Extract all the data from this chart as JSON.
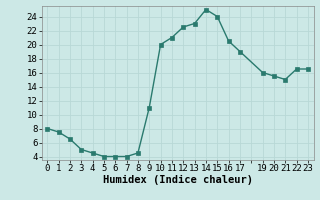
{
  "x": [
    0,
    1,
    2,
    3,
    4,
    5,
    6,
    7,
    8,
    9,
    10,
    11,
    12,
    13,
    14,
    15,
    16,
    17,
    19,
    20,
    21,
    22,
    23
  ],
  "y": [
    8,
    7.5,
    6.5,
    5,
    4.5,
    4,
    4,
    4,
    4.5,
    11,
    20,
    21,
    22.5,
    23,
    25,
    24,
    20.5,
    19,
    16,
    15.5,
    15,
    16.5,
    16.5
  ],
  "line_color": "#2a7a6e",
  "marker_color": "#2a7a6e",
  "bg_color": "#cce8e6",
  "grid_color": "#b8d8d6",
  "xlabel": "Humidex (Indice chaleur)",
  "xlim": [
    -0.5,
    23.5
  ],
  "ylim": [
    3.5,
    25.5
  ],
  "yticks": [
    4,
    6,
    8,
    10,
    12,
    14,
    16,
    18,
    20,
    22,
    24
  ],
  "xtick_positions": [
    0,
    1,
    2,
    3,
    4,
    5,
    6,
    7,
    8,
    9,
    10,
    11,
    12,
    13,
    14,
    15,
    16,
    17,
    18,
    19,
    20,
    21,
    22,
    23
  ],
  "xtick_labels": [
    "0",
    "1",
    "2",
    "3",
    "4",
    "5",
    "6",
    "7",
    "8",
    "9",
    "10",
    "11",
    "12",
    "13",
    "14",
    "15",
    "16",
    "17",
    "",
    "19",
    "20",
    "21",
    "22",
    "23"
  ],
  "tick_fontsize": 6.5,
  "xlabel_fontsize": 7.5,
  "linewidth": 1.0,
  "markersize": 2.5
}
